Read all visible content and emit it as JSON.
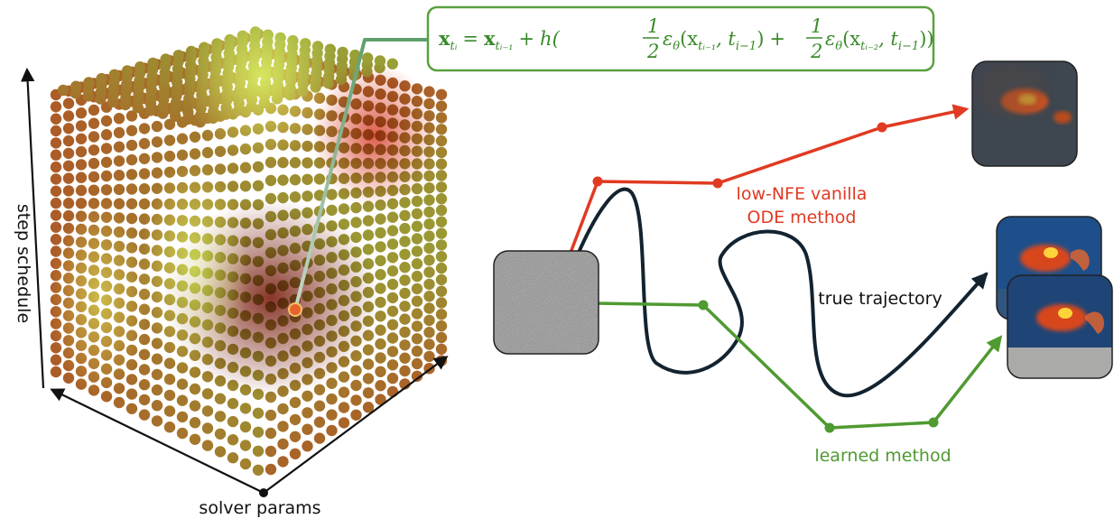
{
  "axes": {
    "vertical": "step schedule",
    "horizontal": "solver params"
  },
  "formula": {
    "text": "x_{t_i} = x_{t_{i−1}} + h( ½ ε_θ(x_{t_{i−1}}, t_{i−1}) + ½ ε_θ(x_{t_{i−2}}, t_{i−1}) )",
    "lhs": "x",
    "lhs_sub": "tᵢ",
    "eq": "=",
    "t1": "x",
    "t1_sub": "tᵢ₋₁",
    "plus1": "+",
    "h": "h(",
    "half_num": "1",
    "half_den": "2",
    "eps1": "ε",
    "theta": "θ",
    "arg1": "(x",
    "arg1_sub": "tᵢ₋₁",
    "arg1_t": ", t",
    "arg1_t_sub": "i−1",
    "close1": ")",
    "plus2": "+",
    "eps2": "ε",
    "arg2": "(x",
    "arg2_sub": "tᵢ₋₂",
    "arg2_t": ", t",
    "arg2_t_sub": "i−1",
    "close2": "))"
  },
  "paths": {
    "red_label_line1": "low-NFE vanilla",
    "red_label_line2": "ODE method",
    "true_label": "true trajectory",
    "green_label": "learned method"
  },
  "colors": {
    "red": "#e03a22",
    "green": "#4f9a31",
    "true_path": "#13232f",
    "formula_border": "#5aa040",
    "pointer": "#8fb59a",
    "cube_red": "#b53a1f",
    "cube_green": "#8fc03c",
    "cube_dark": "#6e2414"
  },
  "icons": {
    "noise": "noise-image-icon",
    "blurry_fish": "blurry-goldfish-image-icon",
    "fish_true": "goldfish-image-icon",
    "fish_learned": "goldfish-learned-image-icon"
  }
}
